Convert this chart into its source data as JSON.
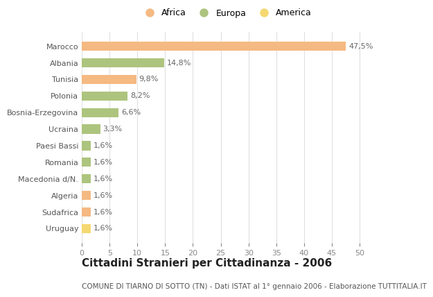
{
  "categories": [
    "Marocco",
    "Albania",
    "Tunisia",
    "Polonia",
    "Bosnia-Erzegovina",
    "Ucraina",
    "Paesi Bassi",
    "Romania",
    "Macedonia d/N.",
    "Algeria",
    "Sudafrica",
    "Uruguay"
  ],
  "values": [
    47.5,
    14.8,
    9.8,
    8.2,
    6.6,
    3.3,
    1.6,
    1.6,
    1.6,
    1.6,
    1.6,
    1.6
  ],
  "labels": [
    "47,5%",
    "14,8%",
    "9,8%",
    "8,2%",
    "6,6%",
    "3,3%",
    "1,6%",
    "1,6%",
    "1,6%",
    "1,6%",
    "1,6%",
    "1,6%"
  ],
  "colors": [
    "#f5b982",
    "#adc47e",
    "#f5b982",
    "#adc47e",
    "#adc47e",
    "#adc47e",
    "#adc47e",
    "#adc47e",
    "#adc47e",
    "#f5b982",
    "#f5b982",
    "#f5d870"
  ],
  "legend": [
    {
      "label": "Africa",
      "color": "#f5b982"
    },
    {
      "label": "Europa",
      "color": "#adc47e"
    },
    {
      "label": "America",
      "color": "#f5d870"
    }
  ],
  "title": "Cittadini Stranieri per Cittadinanza - 2006",
  "subtitle": "COMUNE DI TIARNO DI SOTTO (TN) - Dati ISTAT al 1° gennaio 2006 - Elaborazione TUTTITALIA.IT",
  "xlim": [
    0,
    52
  ],
  "xticks": [
    0,
    5,
    10,
    15,
    20,
    25,
    30,
    35,
    40,
    45,
    50
  ],
  "bg_color": "#ffffff",
  "grid_color": "#e0e0e0",
  "bar_height": 0.55,
  "title_fontsize": 11,
  "subtitle_fontsize": 7.5,
  "label_fontsize": 8,
  "tick_fontsize": 8,
  "legend_fontsize": 9
}
